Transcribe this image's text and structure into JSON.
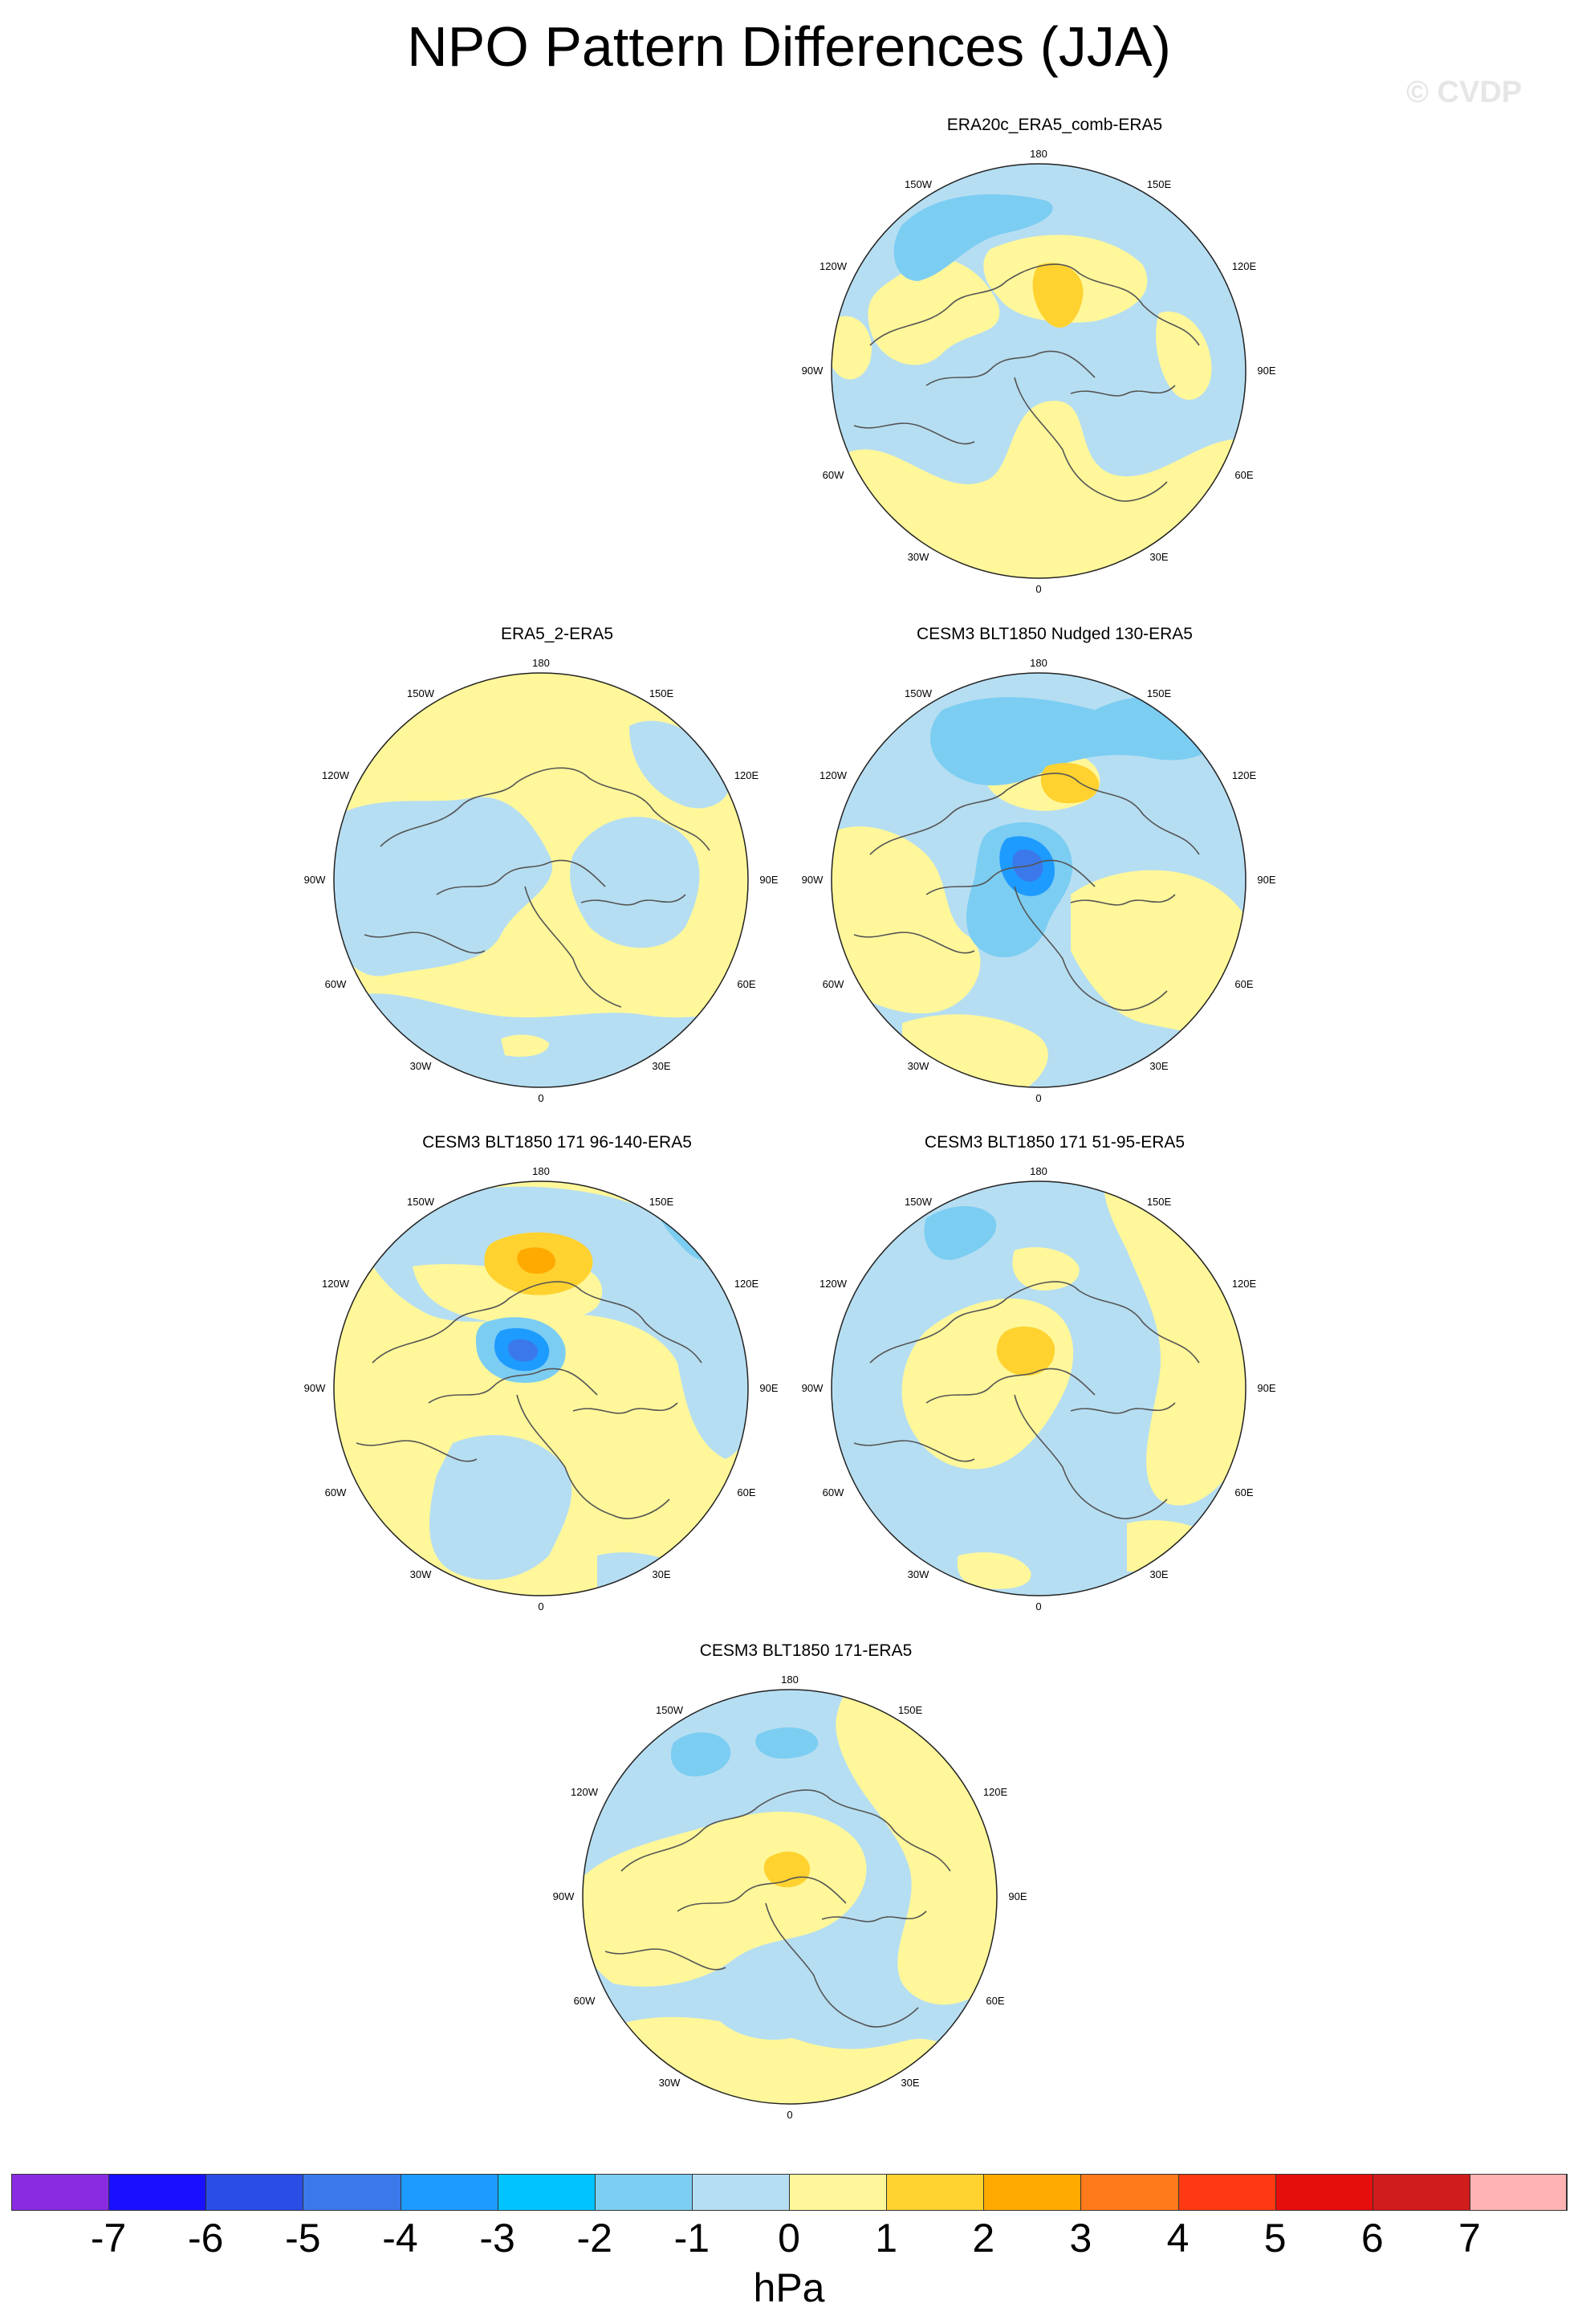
{
  "title": "NPO Pattern Differences (JJA)",
  "watermark": "© CVDP",
  "panels": [
    {
      "title": "ERA20c_ERA5_comb-ERA5",
      "variant": "a"
    },
    {
      "title": "ERA5_2-ERA5",
      "variant": "b"
    },
    {
      "title": "CESM3 BLT1850 Nudged 130-ERA5",
      "variant": "c"
    },
    {
      "title": "CESM3 BLT1850 171 96-140-ERA5",
      "variant": "d"
    },
    {
      "title": "CESM3 BLT1850 171 51-95-ERA5",
      "variant": "e"
    },
    {
      "title": "CESM3 BLT1850 171-ERA5",
      "variant": "f"
    }
  ],
  "lon_labels": [
    "180",
    "150E",
    "120E",
    "90E",
    "60E",
    "30E",
    "0",
    "30W",
    "60W",
    "90W",
    "120W",
    "150W"
  ],
  "colorbar": {
    "colors": [
      "#8a2be2",
      "#1a10ff",
      "#2a4de6",
      "#3b79ea",
      "#1e9bff",
      "#00c4ff",
      "#7ccdf2",
      "#b6def2",
      "#fff79a",
      "#ffd230",
      "#ffaa00",
      "#ff7a1a",
      "#ff3a12",
      "#e60d0d",
      "#d01c1c",
      "#ffb3b3"
    ],
    "ticks": [
      "-7",
      "-6",
      "-5",
      "-4",
      "-3",
      "-2",
      "-1",
      "0",
      "1",
      "2",
      "3",
      "4",
      "5",
      "6",
      "7"
    ],
    "units": "hPa"
  }
}
